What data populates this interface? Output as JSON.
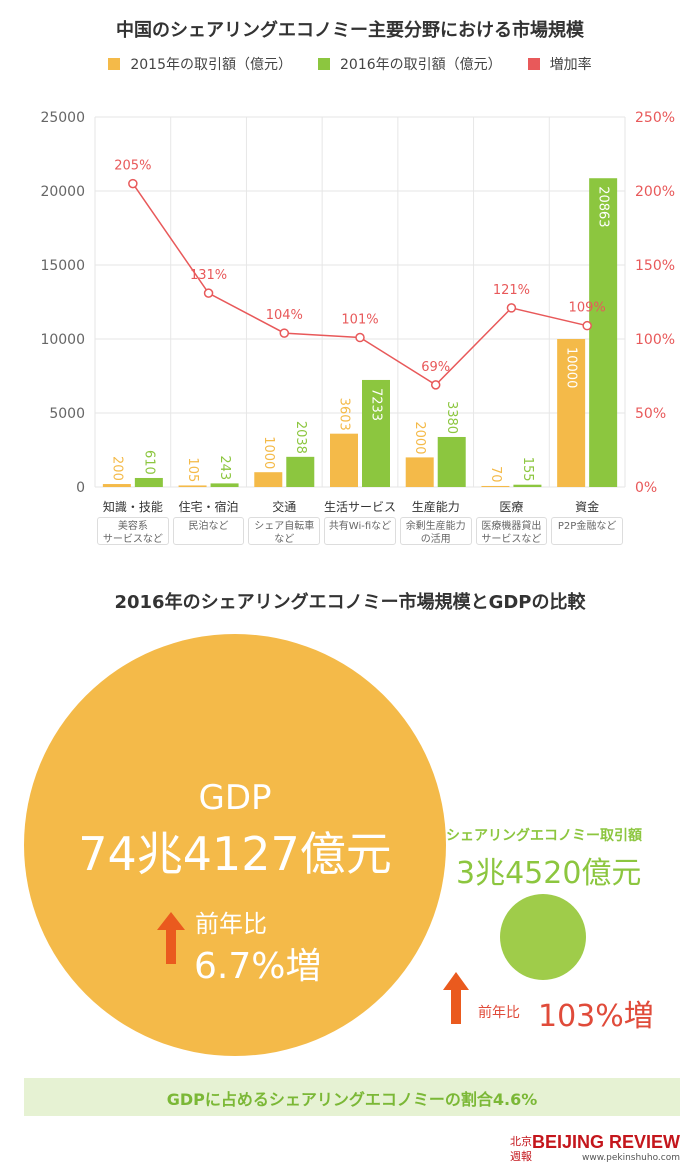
{
  "title": "中国のシェアリングエコノミー主要分野における市場規模",
  "legend": {
    "items": [
      {
        "label": "2015年の取引額（億元）",
        "color": "#f4ba49"
      },
      {
        "label": "2016年の取引額（億元）",
        "color": "#8cc63f"
      },
      {
        "label": "増加率",
        "color": "#e8595a"
      }
    ]
  },
  "chart_data": {
    "type": "bar",
    "categories": [
      "知識・技能",
      "住宅・宿泊",
      "交通",
      "生活サービス",
      "生産能力",
      "医療",
      "資金"
    ],
    "category_notes": [
      "美容系\nサービスなど",
      "民泊など",
      "シェア自転車\nなど",
      "共有Wi-fiなど",
      "余剰生産能力\nの活用",
      "医療機器貸出\nサービスなど",
      "P2P金融など"
    ],
    "series": [
      {
        "name": "2015年の取引額（億元）",
        "values": [
          200,
          105,
          1000,
          3603,
          2000,
          70,
          10000
        ],
        "color": "#f4ba49"
      },
      {
        "name": "2016年の取引額（億元）",
        "values": [
          610,
          243,
          2038,
          7233,
          3380,
          155,
          20863
        ],
        "color": "#8cc63f"
      },
      {
        "name": "増加率",
        "type": "line",
        "axis": "right",
        "values": [
          205,
          131,
          104,
          101,
          69,
          121,
          109
        ],
        "labels": [
          "205%",
          "131%",
          "104%",
          "101%",
          "69%",
          "121%",
          "109%"
        ],
        "color": "#e8595a"
      }
    ],
    "ylim": [
      0,
      25000
    ],
    "yticks": [
      "0",
      "5000",
      "10000",
      "15000",
      "20000",
      "25000"
    ],
    "y2lim": [
      0,
      250
    ],
    "y2ticks": [
      "0%",
      "50%",
      "100%",
      "150%",
      "200%",
      "250%"
    ],
    "grid": true,
    "legend_position": "top"
  },
  "comparison": {
    "title": "2016年のシェアリングエコノミー市場規模とGDPの比較",
    "gdp": {
      "label": "GDP",
      "value": "74兆4127億元",
      "yoy_label": "前年比",
      "yoy_value": "6.7%増"
    },
    "sharing": {
      "label": "シェアリングエコノミー取引額",
      "value": "3兆4520億元",
      "yoy_label": "前年比",
      "yoy_value": "103%増"
    },
    "ratio_text": "GDPに占めるシェアリングエコノミーの割合4.6%"
  },
  "brand": {
    "seal": "北京週報",
    "name": "BEIJING REVIEW",
    "url": "www.pekinshuho.com"
  }
}
